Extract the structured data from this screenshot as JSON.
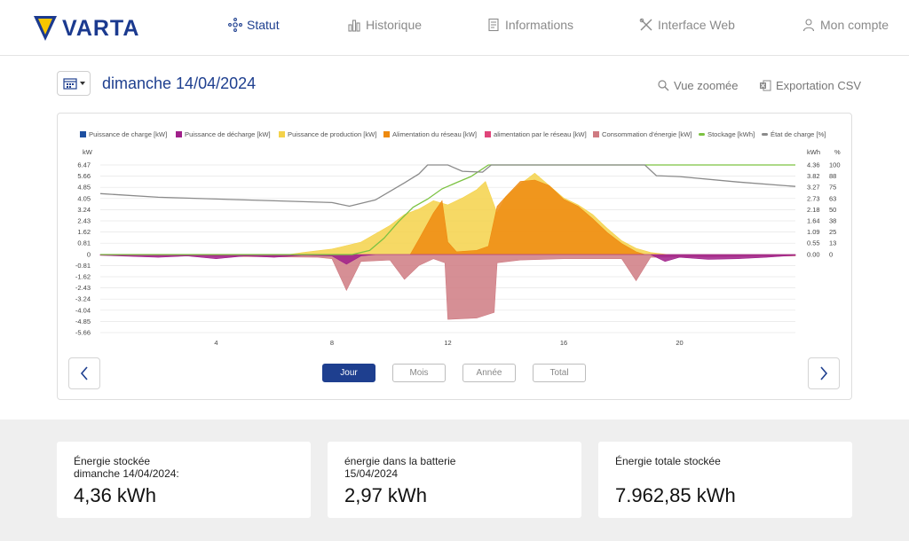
{
  "brand": {
    "name": "VARTA",
    "color": "#1b3a8f",
    "accent": "#f7c600"
  },
  "nav": [
    {
      "label": "Statut",
      "icon": "status-icon",
      "active": true
    },
    {
      "label": "Historique",
      "icon": "bar-chart-icon",
      "active": false
    },
    {
      "label": "Informations",
      "icon": "document-icon",
      "active": false
    },
    {
      "label": "Interface Web",
      "icon": "tools-icon",
      "active": false
    },
    {
      "label": "Mon compte",
      "icon": "user-icon",
      "active": false
    }
  ],
  "date_title": "dimanche 14/04/2024",
  "tools": {
    "zoom_label": "Vue zoomée",
    "export_label": "Exportation CSV"
  },
  "legend": [
    {
      "label": "Puissance de charge [kW]",
      "color": "#1e4fa0"
    },
    {
      "label": "Puissance de décharge [kW]",
      "color": "#a0208a"
    },
    {
      "label": "Puissance de production [kW]",
      "color": "#f4d24a"
    },
    {
      "label": "Alimentation du réseau [kW]",
      "color": "#ee8a10"
    },
    {
      "label": "alimentation par le réseau [kW]",
      "color": "#e0457a"
    },
    {
      "label": "Consommation d'énergie [kW]",
      "color": "#cf7b82"
    },
    {
      "label": "Stockage [kWh]",
      "color": "#7cc242"
    },
    {
      "label": "État de charge [%]",
      "color": "#8a8a8a"
    }
  ],
  "chart_data": {
    "type": "area",
    "x_unit": "hour",
    "xlim": [
      0,
      24
    ],
    "x_ticks": [
      "4",
      "8",
      "12",
      "16",
      "20"
    ],
    "left_axis": {
      "unit_label": "kW",
      "ticks": [
        "6.47",
        "5.66",
        "4.85",
        "4.05",
        "3.24",
        "2.43",
        "1.62",
        "0.81",
        "0",
        "-0.81",
        "-1.62",
        "-2.43",
        "-3.24",
        "-4.04",
        "-4.85",
        "-5.66"
      ]
    },
    "right_axis_kwh": {
      "unit_label": "kWh",
      "ticks": [
        "4.36",
        "3.82",
        "3.27",
        "2.73",
        "2.18",
        "1.64",
        "1.09",
        "0.55",
        "0.00"
      ]
    },
    "right_axis_pct": {
      "unit_label": "%",
      "ticks": [
        "100",
        "88",
        "75",
        "63",
        "50",
        "38",
        "25",
        "13",
        "0"
      ]
    },
    "series": [
      {
        "name": "Puissance de production [kW]",
        "color": "#f4d24a",
        "axis": "kW",
        "points": [
          [
            6.5,
            0
          ],
          [
            7,
            0.15
          ],
          [
            8,
            0.4
          ],
          [
            9,
            0.9
          ],
          [
            10,
            2.1
          ],
          [
            10.5,
            2.9
          ],
          [
            11,
            3.3
          ],
          [
            11.5,
            3.9
          ],
          [
            12,
            3.6
          ],
          [
            12.5,
            4.1
          ],
          [
            13,
            4.7
          ],
          [
            13.3,
            5.3
          ],
          [
            13.7,
            3.0
          ],
          [
            14,
            4.2
          ],
          [
            14.5,
            5.1
          ],
          [
            15,
            5.9
          ],
          [
            15.5,
            5.0
          ],
          [
            16,
            4.1
          ],
          [
            16.5,
            3.6
          ],
          [
            17,
            2.9
          ],
          [
            17.5,
            1.9
          ],
          [
            18,
            1.0
          ],
          [
            18.5,
            0.45
          ],
          [
            19,
            0.15
          ],
          [
            19.6,
            0
          ]
        ]
      },
      {
        "name": "Alimentation du réseau [kW]",
        "color": "#ee8a10",
        "axis": "kW",
        "points": [
          [
            10.7,
            0
          ],
          [
            11,
            1.1
          ],
          [
            11.5,
            3.0
          ],
          [
            11.8,
            3.9
          ],
          [
            12,
            0.9
          ],
          [
            12.3,
            0.2
          ],
          [
            13,
            0.3
          ],
          [
            13.4,
            0.6
          ],
          [
            13.7,
            3.5
          ],
          [
            14,
            4.2
          ],
          [
            14.5,
            5.3
          ],
          [
            15,
            5.4
          ],
          [
            15.5,
            5.0
          ],
          [
            16,
            4.0
          ],
          [
            16.5,
            3.5
          ],
          [
            17,
            2.6
          ],
          [
            17.5,
            1.6
          ],
          [
            18,
            0.8
          ],
          [
            18.5,
            0.2
          ],
          [
            18.8,
            0
          ]
        ]
      },
      {
        "name": "Consommation d'énergie [kW]",
        "color": "#cf7b82",
        "axis": "kW",
        "points": [
          [
            0,
            -0.05
          ],
          [
            3,
            -0.1
          ],
          [
            5,
            -0.15
          ],
          [
            7.5,
            -0.2
          ],
          [
            8,
            -0.3
          ],
          [
            8.5,
            -2.6
          ],
          [
            9,
            -0.5
          ],
          [
            10,
            -0.4
          ],
          [
            10.5,
            -1.8
          ],
          [
            11,
            -0.8
          ],
          [
            11.5,
            -0.3
          ],
          [
            11.9,
            -0.6
          ],
          [
            12,
            -4.7
          ],
          [
            13,
            -4.6
          ],
          [
            13.6,
            -4.2
          ],
          [
            13.7,
            -0.6
          ],
          [
            14.5,
            -0.4
          ],
          [
            16,
            -0.3
          ],
          [
            18,
            -0.3
          ],
          [
            18.5,
            -1.9
          ],
          [
            19,
            -0.2
          ],
          [
            24,
            -0.1
          ]
        ]
      },
      {
        "name": "Puissance de décharge [kW]",
        "color": "#a0208a",
        "axis": "kW",
        "points": [
          [
            0,
            -0.05
          ],
          [
            2,
            -0.2
          ],
          [
            3,
            -0.1
          ],
          [
            4,
            -0.3
          ],
          [
            5,
            -0.1
          ],
          [
            6,
            -0.2
          ],
          [
            7,
            -0.05
          ],
          [
            8,
            -0.1
          ],
          [
            8.5,
            -0.7
          ],
          [
            9,
            -0.1
          ],
          [
            9.5,
            0
          ],
          [
            19,
            0
          ],
          [
            19.5,
            -0.5
          ],
          [
            20,
            -0.2
          ],
          [
            21,
            -0.35
          ],
          [
            22,
            -0.3
          ],
          [
            23,
            -0.2
          ],
          [
            24,
            -0.05
          ]
        ]
      },
      {
        "name": "Stockage [kWh]",
        "color": "#7cc242",
        "axis": "kWh",
        "points": [
          [
            0,
            0
          ],
          [
            8.7,
            0
          ],
          [
            9.3,
            0.2
          ],
          [
            9.8,
            0.8
          ],
          [
            10.3,
            1.6
          ],
          [
            10.8,
            2.3
          ],
          [
            11.3,
            2.7
          ],
          [
            11.8,
            3.2
          ],
          [
            12.3,
            3.5
          ],
          [
            12.8,
            3.8
          ],
          [
            13.4,
            4.36
          ],
          [
            24,
            4.36
          ]
        ]
      },
      {
        "name": "État de charge [%]",
        "color": "#8a8a8a",
        "axis": "%",
        "points": [
          [
            0,
            68
          ],
          [
            2,
            64
          ],
          [
            4,
            62
          ],
          [
            6,
            60
          ],
          [
            8,
            58
          ],
          [
            8.6,
            54
          ],
          [
            9.5,
            61
          ],
          [
            10.5,
            80
          ],
          [
            11,
            90
          ],
          [
            11.3,
            100
          ],
          [
            12,
            100
          ],
          [
            12.5,
            93
          ],
          [
            13.2,
            92
          ],
          [
            13.5,
            100
          ],
          [
            18.8,
            100
          ],
          [
            19.2,
            88
          ],
          [
            20,
            87
          ],
          [
            22,
            81
          ],
          [
            24,
            76
          ]
        ]
      }
    ]
  },
  "period_buttons": [
    {
      "label": "Jour",
      "active": true
    },
    {
      "label": "Mois",
      "active": false
    },
    {
      "label": "Année",
      "active": false
    },
    {
      "label": "Total",
      "active": false
    }
  ],
  "stats": [
    {
      "label_line1": "Énergie stockée",
      "label_line2": "dimanche 14/04/2024:",
      "value": "4,36 kWh"
    },
    {
      "label_line1": "énergie dans la batterie",
      "label_line2": "15/04/2024",
      "value": "2,97 kWh"
    },
    {
      "label_line1": "Énergie totale stockée",
      "label_line2": "",
      "value": "7.962,85 kWh"
    }
  ]
}
